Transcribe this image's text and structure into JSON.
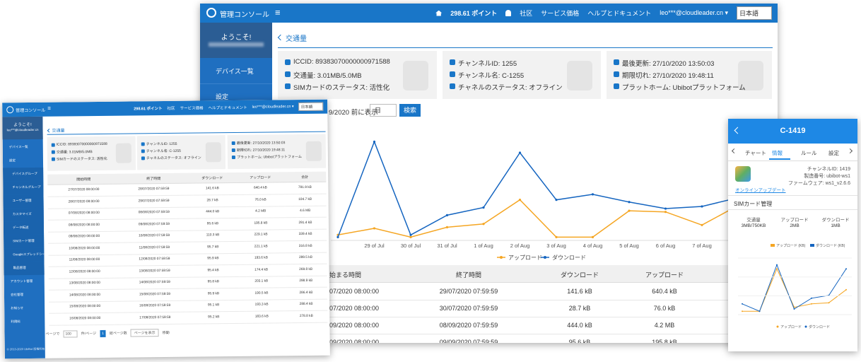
{
  "main": {
    "topbar": {
      "brand": "管理コンソール",
      "menu": "≡",
      "points": "298.61 ポイント",
      "links": [
        "社区",
        "サービス価格",
        "ヘルプとドキュメント"
      ],
      "user": "leo***@cloudleader.cn ▾",
      "language": "日本語"
    },
    "sidebar": {
      "welcome": "ようこそ!",
      "items": [
        "デバイス一覧",
        "設定"
      ]
    },
    "page_title": "交通量",
    "cards": [
      [
        "ICCID: 89383070000000971588",
        "交通量: 3.01MB/5.0MB",
        "SIMカードのステータス: 活性化"
      ],
      [
        "チャンネルID: 1255",
        "チャンネル名: C-1255",
        "チャネルのステータス: オフライン"
      ],
      [
        "最後更新: 27/10/2020 13:50:03",
        "期限切れ: 27/10/2020 19:48:11",
        "プラットホーム: Ubibotプラットフォーム"
      ]
    ],
    "filter": {
      "label": "9/2020 前に表示",
      "unit": "日",
      "button": "検索"
    },
    "chart": {
      "type": "line",
      "categories": [
        null,
        "29 of Jul",
        "30 of Jul",
        "31 of Jul",
        "1 of Aug",
        "2 of Aug",
        "3 of Aug",
        "4 of Aug",
        "5 of Aug",
        "6 of Aug",
        "7 of Aug",
        "8 of Aug"
      ],
      "series": [
        {
          "name": "アップロード",
          "color": "#f5a623",
          "values": [
            5,
            11,
            3,
            12,
            15,
            37,
            3,
            3,
            27,
            26,
            14,
            32
          ]
        },
        {
          "name": "ダウンロード",
          "color": "#1565c0",
          "values": [
            3,
            90,
            5,
            23,
            30,
            80,
            37,
            42,
            35,
            29,
            31,
            39
          ]
        }
      ],
      "ylim": [
        0,
        100
      ]
    },
    "table": {
      "headers": [
        "始まる時間",
        "終了時間",
        "ダウンロード",
        "アップロード"
      ],
      "rows": [
        [
          "07/2020 08:00:00",
          "29/07/2020 07:59:59",
          "141.6 kB",
          "640.4 kB"
        ],
        [
          "07/2020 08:00:00",
          "30/07/2020 07:59:59",
          "28.7 kB",
          "76.0 kB"
        ],
        [
          "09/2020 08:00:00",
          "08/09/2020 07:59:59",
          "444.0 kB",
          "4.2 MB"
        ],
        [
          "09/2020 08:00:00",
          "09/09/2020 07:59:59",
          "95.6 kB",
          "195.8 kB"
        ]
      ]
    }
  },
  "left": {
    "topbar": {
      "brand": "管理コンソール",
      "menu": "≡",
      "points": "298.61 ポイント",
      "links": [
        "社区",
        "サービス価格",
        "ヘルプとドキュメント"
      ],
      "user": "leo***@cloudleader.cn ▾",
      "language": "日本語"
    },
    "sidebar": {
      "welcome": "ようこそ!",
      "email": "leo***@cloudleader.cn",
      "items": [
        "デバイス一覧",
        "設定",
        "デバイスグループ",
        "チャンネルグループ",
        "ユーザー管理",
        "カスタマイズ",
        "データ転送",
        "SIMカード管理",
        "Googleスプレッドシートとの連携",
        "製品管理",
        "アカウント管理",
        "会社管理",
        "お知らせ",
        "利用料"
      ],
      "footer": "© 2013-2020 UbiBot 版権所有"
    },
    "page_title": "交通量",
    "cards": [
      [
        "ICCID: 89383070000000971588",
        "交通量: 3.01MB/5.0MB",
        "SIMカードのステータス: 活性化"
      ],
      [
        "チャンネルID: 1255",
        "チャンネル名: C-1255",
        "チャネルのステータス: オフライン"
      ],
      [
        "最後更新: 27/10/2020 13:50:03",
        "期限切れ: 27/10/2020 19:48:11",
        "プラットホーム: Ubibotプラットフォーム"
      ]
    ],
    "table": {
      "headers": [
        "開始時間",
        "終了時間",
        "ダウンロード",
        "アップロード",
        "合計"
      ],
      "rows": [
        [
          "27/07/2020 08:00:00",
          "28/07/2020 07:59:59",
          "141.6 kB",
          "640.4 kB",
          "781.9 kB"
        ],
        [
          "28/07/2020 08:00:00",
          "29/07/2020 07:59:59",
          "28.7 kB",
          "76.0 kB",
          "104.7 kB"
        ],
        [
          "07/08/2020 08:00:00",
          "08/08/2020 07:59:59",
          "444.0 kB",
          "4.2 MB",
          "4.6 MB"
        ],
        [
          "08/08/2020 08:00:00",
          "09/08/2020 07:59:59",
          "95.6 kB",
          "195.8 kB",
          "291.4 kB"
        ],
        [
          "09/08/2020 08:00:00",
          "10/08/2020 07:59:59",
          "110.3 kB",
          "229.1 kB",
          "339.4 kB"
        ],
        [
          "10/08/2020 08:00:00",
          "11/08/2020 07:59:59",
          "95.7 kB",
          "221.1 kB",
          "316.8 kB"
        ],
        [
          "11/08/2020 08:00:00",
          "12/08/2020 07:59:59",
          "95.9 kB",
          "193.6 kB",
          "289.5 kB"
        ],
        [
          "12/08/2020 08:00:00",
          "13/08/2020 07:59:59",
          "95.4 kB",
          "174.4 kB",
          "269.8 kB"
        ],
        [
          "13/08/2020 08:00:00",
          "14/08/2020 07:59:59",
          "95.8 kB",
          "203.1 kB",
          "298.9 kB"
        ],
        [
          "14/08/2020 08:00:00",
          "15/08/2020 07:59:59",
          "95.9 kB",
          "190.5 kB",
          "286.4 kB"
        ],
        [
          "15/08/2020 08:00:00",
          "16/08/2020 07:59:59",
          "95.1 kB",
          "193.3 kB",
          "288.4 kB"
        ],
        [
          "16/08/2020 08:00:00",
          "17/08/2020 07:59:59",
          "95.2 kB",
          "183.6 kB",
          "278.8 kB"
        ]
      ]
    },
    "pagination": [
      "ページで",
      "100",
      "件/ページ",
      "1",
      "総ページ数",
      "ページを表示",
      "移動"
    ]
  },
  "mobile": {
    "title": "C-1419",
    "tabs": [
      "チャート",
      "情報",
      "ルール",
      "設定"
    ],
    "info": [
      "チャンネルID: 1419",
      "製造番号: ubibot-ws1",
      "ファームウェア: ws1_v2.6.6"
    ],
    "link": "オンラインアップデート",
    "sim_title": "SIMカード管理",
    "sim": [
      [
        "交通量",
        "3MB/750KB"
      ],
      [
        "アップロード",
        "2MB"
      ],
      [
        "ダウンロード",
        "1MB"
      ]
    ],
    "chart": {
      "type": "line",
      "legend": [
        "アップロード (KB)",
        "ダウンロード (KB)"
      ],
      "series": [
        {
          "name": "アップロード",
          "color": "#f5a623",
          "values": [
            6,
            6,
            81,
            13,
            19,
            21,
            44
          ]
        },
        {
          "name": "ダウンロード",
          "color": "#1565c0",
          "values": [
            19,
            6,
            88,
            10,
            29,
            34,
            81
          ]
        }
      ],
      "ylim": [
        0,
        100
      ]
    }
  }
}
